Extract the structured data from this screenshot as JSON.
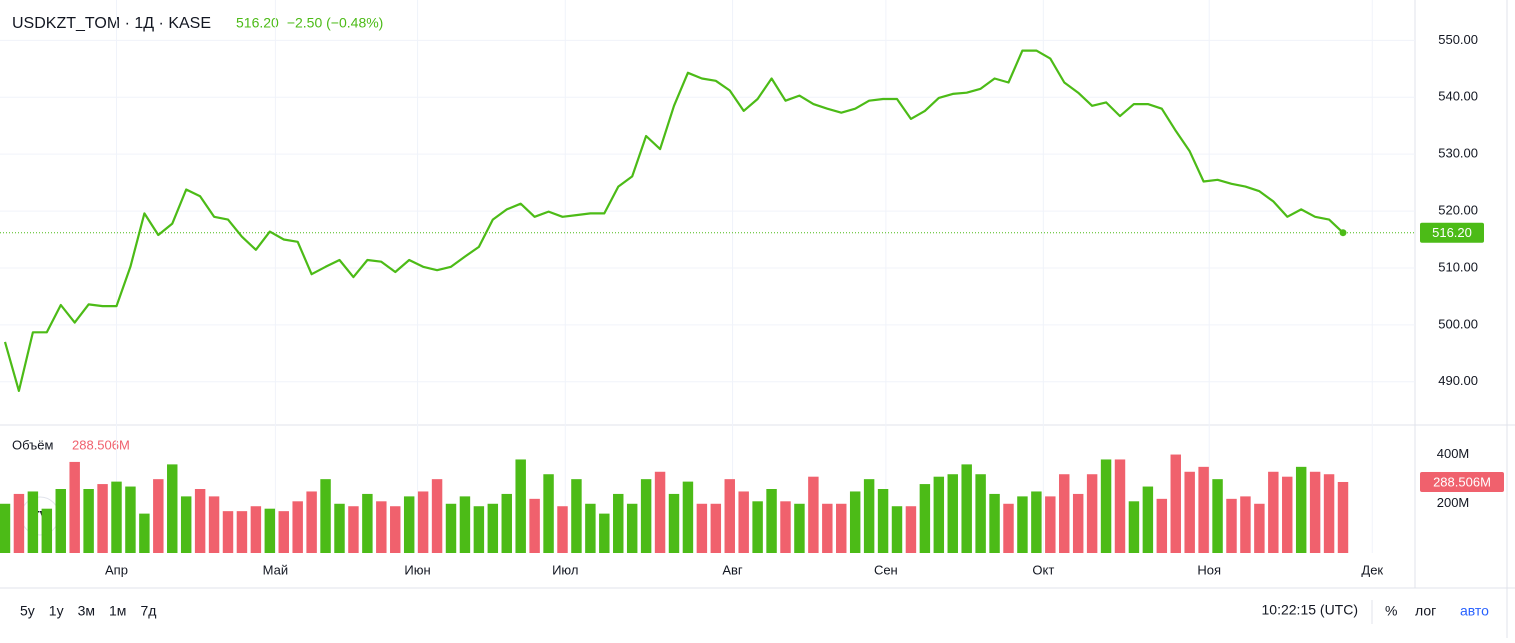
{
  "chart_data": {
    "type": "line",
    "title": "USDKZT_TOM · 1Д · KASE",
    "last_price": {
      "value": 516.2,
      "label": "516.20"
    },
    "change_text": "−2.50 (−0.48%)",
    "color": "#4cbb17",
    "down_color": "#f0616d",
    "xticks": [
      {
        "value": 8.0,
        "label": "Апр"
      },
      {
        "value": 19.4,
        "label": "Май"
      },
      {
        "value": 29.6,
        "label": "Июн"
      },
      {
        "value": 40.2,
        "label": "Июл"
      },
      {
        "value": 52.2,
        "label": "Авг"
      },
      {
        "value": 63.2,
        "label": "Сен"
      },
      {
        "value": 74.5,
        "label": "Окт"
      },
      {
        "value": 86.4,
        "label": "Ноя"
      },
      {
        "value": 98.1,
        "label": "Дек"
      }
    ],
    "ylim": [
      482.4,
      557.1
    ],
    "yticks": [
      {
        "value": 490,
        "label": "490.00"
      },
      {
        "value": 500,
        "label": "500.00"
      },
      {
        "value": 510,
        "label": "510.00"
      },
      {
        "value": 520,
        "label": "520.00"
      },
      {
        "value": 530,
        "label": "530.00"
      },
      {
        "value": 540,
        "label": "540.00"
      },
      {
        "value": 550,
        "label": "550.00"
      }
    ],
    "values": [
      497,
      488.4,
      498.7,
      498.7,
      503.5,
      500.4,
      503.6,
      503.3,
      503.3,
      510.2,
      519.6,
      515.8,
      517.8,
      523.8,
      522.6,
      519.0,
      518.5,
      515.5,
      513.2,
      516.4,
      515.0,
      514.6,
      508.9,
      510.2,
      511.4,
      508.4,
      511.4,
      511.1,
      509.3,
      511.4,
      510.2,
      509.6,
      510.2,
      512.0,
      513.7,
      518.5,
      520.3,
      521.3,
      519.0,
      519.9,
      519.0,
      519.3,
      519.6,
      519.6,
      524.3,
      526.1,
      533.2,
      530.9,
      538.5,
      544.3,
      543.3,
      542.9,
      541.2,
      537.6,
      539.7,
      543.3,
      539.4,
      540.3,
      538.8,
      538.0,
      537.3,
      538.0,
      539.4,
      539.7,
      539.7,
      536.2,
      537.6,
      539.9,
      540.6,
      540.8,
      541.5,
      543.3,
      542.6,
      548.2,
      548.2,
      546.8,
      542.6,
      540.8,
      538.5,
      539.1,
      536.7,
      538.8,
      538.8,
      538.0,
      534.1,
      530.5,
      525.2,
      525.5,
      524.8,
      524.3,
      523.5,
      521.7,
      519.0,
      520.3,
      519.0,
      518.5,
      516.2
    ],
    "volume": {
      "name": "Объём",
      "last": {
        "value": 288.506,
        "label": "288.506M"
      },
      "ylim": [
        0,
        520
      ],
      "yticks": [
        {
          "value": 200,
          "label": "200M"
        },
        {
          "value": 400,
          "label": "400M"
        }
      ],
      "values": [
        200,
        240,
        250,
        180,
        260,
        370,
        260,
        280,
        290,
        270,
        160,
        300,
        360,
        230,
        260,
        230,
        170,
        170,
        190,
        180,
        170,
        210,
        250,
        300,
        200,
        190,
        240,
        210,
        190,
        230,
        250,
        300,
        200,
        230,
        190,
        200,
        240,
        380,
        220,
        320,
        190,
        300,
        200,
        160,
        240,
        200,
        300,
        330,
        240,
        290,
        200,
        200,
        300,
        250,
        210,
        260,
        210,
        200,
        310,
        200,
        200,
        250,
        300,
        260,
        190,
        190,
        280,
        310,
        320,
        360,
        320,
        240,
        200,
        230,
        250,
        230,
        320,
        240,
        320,
        380,
        380,
        210,
        270,
        220,
        400,
        330,
        350,
        300,
        220,
        230,
        200,
        330,
        310,
        350,
        330,
        320,
        288.506
      ]
    }
  },
  "toolbar": {
    "ranges": [
      "5у",
      "1у",
      "3м",
      "1м",
      "7д"
    ],
    "clock": "10:22:15 (UTC)",
    "options": [
      "%",
      "лог",
      "авто"
    ]
  }
}
